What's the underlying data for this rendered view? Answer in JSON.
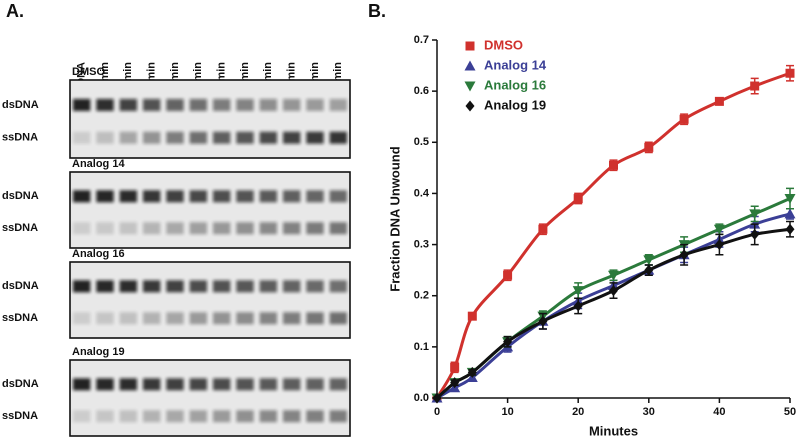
{
  "gel": {
    "panel_label": "A.",
    "lanes": [
      "dsDNA",
      "2.5 min",
      "5 min",
      "10 min",
      "15 min",
      "20 min",
      "25 min",
      "30 min",
      "35 min",
      "40 min",
      "45 min",
      "50 min"
    ],
    "blocks": [
      {
        "label": "DMSO",
        "rows": [
          "dsDNA",
          "ssDNA"
        ]
      },
      {
        "label": "Analog 14",
        "rows": [
          "dsDNA",
          "ssDNA"
        ]
      },
      {
        "label": "Analog 16",
        "rows": [
          "dsDNA",
          "ssDNA"
        ]
      },
      {
        "label": "Analog 19",
        "rows": [
          "dsDNA",
          "ssDNA"
        ]
      }
    ]
  },
  "panel_b_label": "B.",
  "chart_data": {
    "type": "scatter",
    "x_label": "Minutes",
    "y_label": "Fraction DNA Unwound",
    "x": [
      0,
      2.5,
      5,
      10,
      15,
      20,
      25,
      30,
      35,
      40,
      45,
      50
    ],
    "xlim": [
      0,
      50
    ],
    "xticks": [
      0,
      10,
      20,
      30,
      40,
      50
    ],
    "ylim": [
      0,
      0.7
    ],
    "yticks": [
      {
        "value": 0,
        "label": "0.0"
      },
      0.1,
      0.2,
      0.3,
      0.4,
      0.5,
      0.6,
      0.7
    ],
    "legend": "upper left",
    "series": [
      {
        "name": "DMSO",
        "color": "#d0312d",
        "marker": "square",
        "values": [
          0,
          0.06,
          0.16,
          0.24,
          0.33,
          0.39,
          0.455,
          0.49,
          0.545,
          0.58,
          0.61,
          0.635
        ],
        "errors": [
          0,
          0.01,
          0.005,
          0.01,
          0.01,
          0.01,
          0.01,
          0.01,
          0.01,
          0.005,
          0.015,
          0.015
        ]
      },
      {
        "name": "Analog 14",
        "color": "#3b3f96",
        "marker": "triangle-up",
        "values": [
          0,
          0.02,
          0.04,
          0.1,
          0.15,
          0.19,
          0.22,
          0.25,
          0.28,
          0.31,
          0.34,
          0.36
        ],
        "errors": [
          0,
          0.005,
          0.005,
          0.01,
          0.015,
          0.015,
          0.01,
          0.01,
          0.015,
          0.015,
          0.015,
          0.01
        ]
      },
      {
        "name": "Analog 16",
        "color": "#2b7a3b",
        "marker": "triangle-down",
        "values": [
          0,
          0.03,
          0.05,
          0.11,
          0.16,
          0.21,
          0.24,
          0.27,
          0.3,
          0.33,
          0.36,
          0.39
        ],
        "errors": [
          0,
          0.005,
          0.005,
          0.01,
          0.01,
          0.015,
          0.01,
          0.01,
          0.015,
          0.01,
          0.015,
          0.02
        ]
      },
      {
        "name": "Analog 19",
        "color": "#111111",
        "marker": "diamond",
        "values": [
          0,
          0.03,
          0.05,
          0.11,
          0.15,
          0.18,
          0.21,
          0.25,
          0.28,
          0.3,
          0.32,
          0.33
        ],
        "errors": [
          0,
          0.005,
          0.005,
          0.01,
          0.015,
          0.015,
          0.015,
          0.01,
          0.02,
          0.02,
          0.02,
          0.015
        ]
      }
    ]
  }
}
